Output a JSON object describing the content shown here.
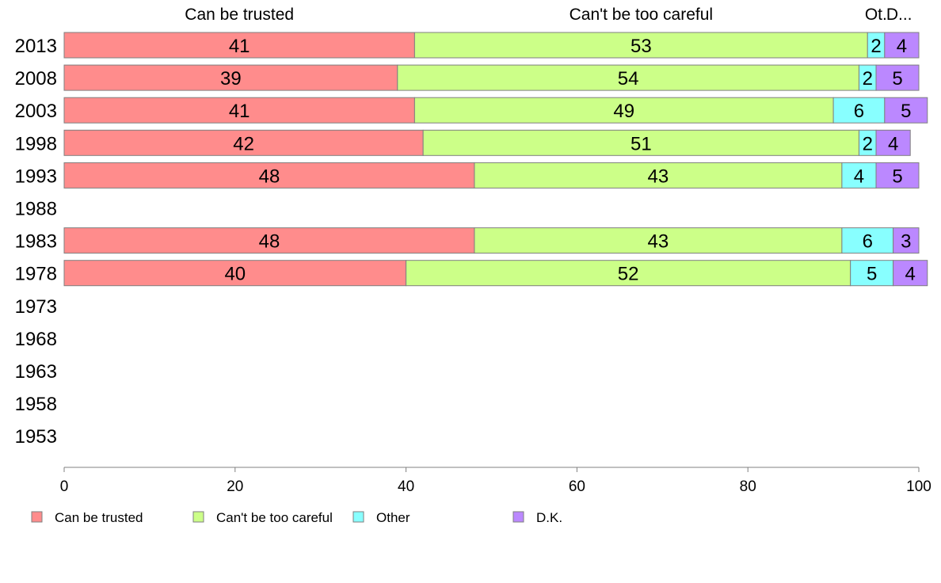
{
  "chart_data": {
    "type": "bar",
    "orientation": "horizontal",
    "stacked": true,
    "categories": [
      "2013",
      "2008",
      "2003",
      "1998",
      "1993",
      "1988",
      "1983",
      "1978",
      "1973",
      "1968",
      "1963",
      "1958",
      "1953"
    ],
    "series": [
      {
        "name": "Can be trusted",
        "header": "Can be trusted",
        "color": "#ff8c8c",
        "values": [
          41,
          39,
          41,
          42,
          48,
          null,
          48,
          40,
          null,
          null,
          null,
          null,
          null
        ]
      },
      {
        "name": "Can't be too careful",
        "header": "Can't be too careful",
        "color": "#ccff88",
        "values": [
          53,
          54,
          49,
          51,
          43,
          null,
          43,
          52,
          null,
          null,
          null,
          null,
          null
        ]
      },
      {
        "name": "Other",
        "header": "Ot.",
        "color": "#88ffff",
        "values": [
          2,
          2,
          6,
          2,
          4,
          null,
          6,
          5,
          null,
          null,
          null,
          null,
          null
        ]
      },
      {
        "name": "D.K.",
        "header": "D...",
        "color": "#bb88ff",
        "values": [
          4,
          5,
          5,
          4,
          5,
          null,
          3,
          4,
          null,
          null,
          null,
          null,
          null
        ]
      }
    ],
    "xlim": [
      0,
      100
    ],
    "xticks": [
      0,
      20,
      40,
      60,
      80,
      100
    ],
    "grid": false,
    "legend_position": "bottom-left"
  }
}
